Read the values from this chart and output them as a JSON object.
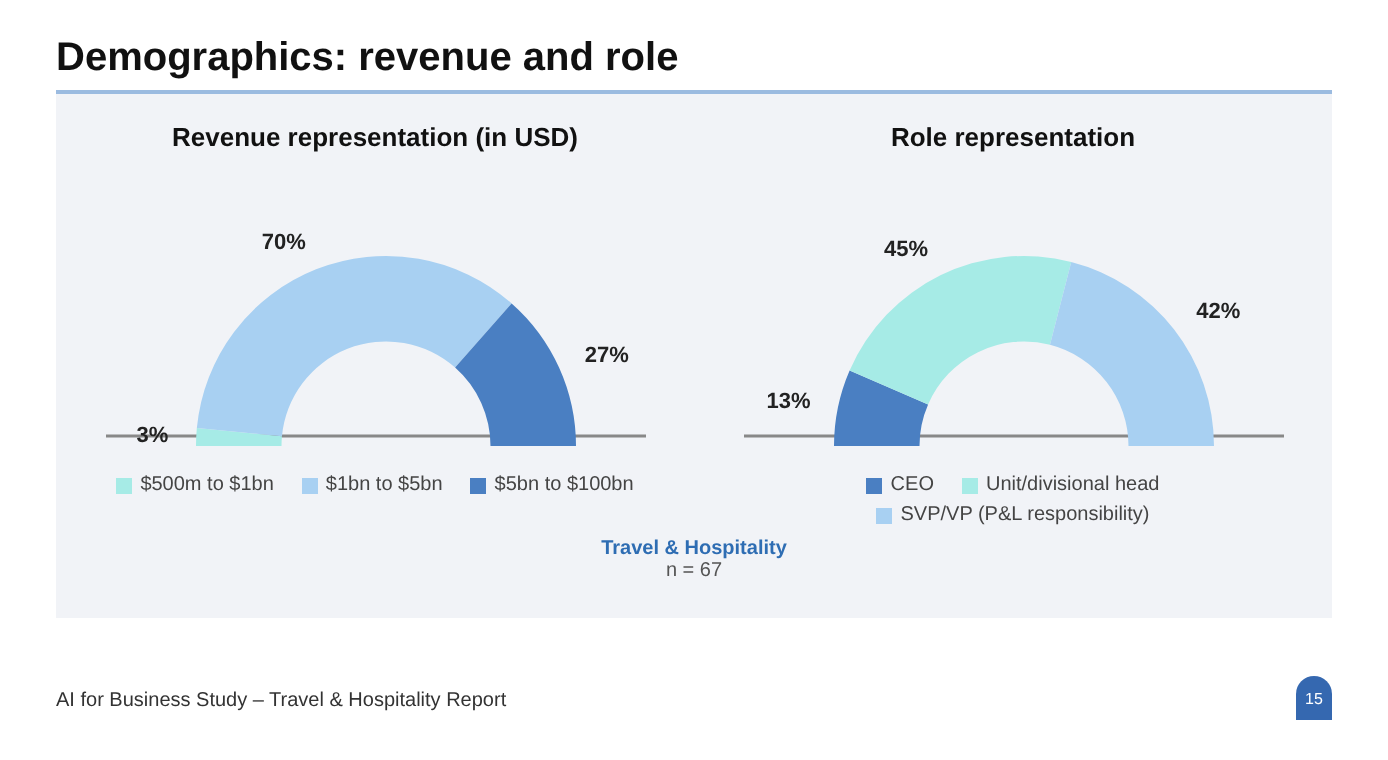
{
  "chart_data": [
    {
      "type": "donut",
      "title": "Revenue representation (in USD)",
      "categories": [
        "$500m to $1bn",
        "$1bn to $5bn",
        "$5bn to $100bn"
      ],
      "values": [
        3,
        70,
        27
      ],
      "colors": [
        "#a6ebe6",
        "#a8d0f2",
        "#4a7fc2"
      ],
      "value_labels": [
        "3%",
        "70%",
        "27%"
      ],
      "legend": "bottom",
      "annotations": [
        "Demographics: revenue and role",
        "Travel & Hospitality",
        "n = 67"
      ]
    },
    {
      "type": "donut",
      "title": "Role representation",
      "categories": [
        "CEO",
        "Unit/divisional head",
        "SVP/VP (P&L responsibility)"
      ],
      "values": [
        13,
        45,
        42
      ],
      "colors": [
        "#4a7fc2",
        "#a6ebe6",
        "#a8d0f2"
      ],
      "value_labels": [
        "13%",
        "45%",
        "42%"
      ],
      "legend": "bottom",
      "annotations": [
        "AI for Business Study – Travel & Hospitality Report",
        "15"
      ]
    }
  ]
}
